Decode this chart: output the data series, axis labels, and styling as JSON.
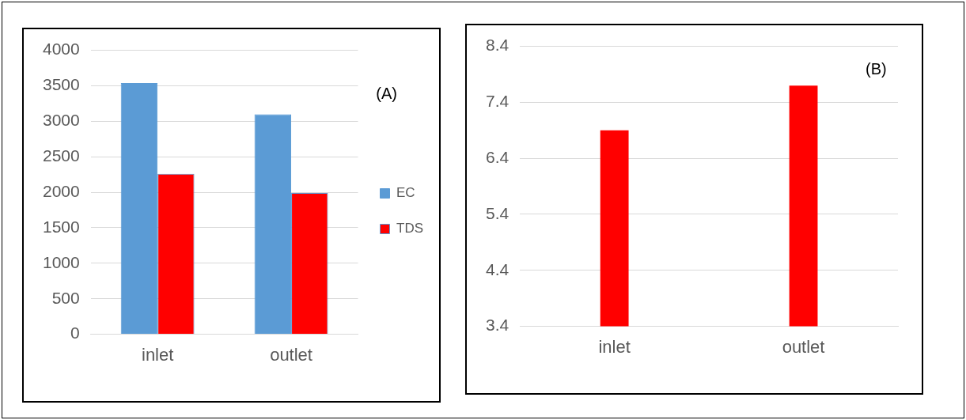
{
  "chart_data": [
    {
      "type": "bar",
      "categories": [
        "inlet",
        "outlet"
      ],
      "series": [
        {
          "name": "EC",
          "color": "#5b9bd5",
          "values": [
            3540,
            3100
          ]
        },
        {
          "name": "TDS",
          "color": "#ff0000",
          "values": [
            2260,
            1990
          ]
        }
      ],
      "ylim": [
        0,
        4000
      ],
      "yticks": [
        0,
        500,
        1000,
        1500,
        2000,
        2500,
        3000,
        3500,
        4000
      ],
      "grid": "y",
      "legend": "right",
      "annotations": [
        "(A)"
      ]
    },
    {
      "type": "bar",
      "categories": [
        "inlet",
        "outlet"
      ],
      "series": [
        {
          "color": "#ff0000",
          "values": [
            6.9,
            7.7
          ]
        }
      ],
      "ylim": [
        3.4,
        8.4
      ],
      "yticks": [
        3.4,
        4.4,
        5.4,
        6.4,
        7.4,
        8.4
      ],
      "grid": "y",
      "annotations": [
        "(B)"
      ]
    }
  ]
}
